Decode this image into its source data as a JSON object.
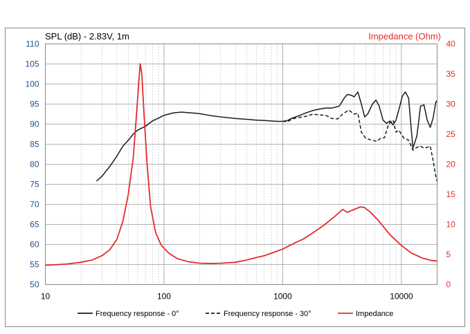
{
  "chart_data": {
    "type": "line",
    "x_scale": "log",
    "xlim": [
      10,
      20000
    ],
    "x_ticks": [
      "10",
      "100",
      "1000",
      "10000"
    ],
    "y_left": {
      "label": "SPL (dB) - 2.83V, 1m",
      "ylim": [
        50,
        110
      ],
      "ticks": [
        "50",
        "55",
        "60",
        "65",
        "70",
        "75",
        "80",
        "85",
        "90",
        "95",
        "100",
        "105",
        "110"
      ]
    },
    "y_right": {
      "label": "Impedance (Ohm)",
      "ylim": [
        0,
        40
      ],
      "ticks": [
        "0",
        "5",
        "10",
        "15",
        "20",
        "25",
        "30",
        "35",
        "40"
      ]
    },
    "grid": true,
    "legend_position": "bottom",
    "colors": {
      "spl": "#1a1a1a",
      "impedance": "#e32b2b",
      "left_axis": "#1f4e8c"
    },
    "series": [
      {
        "name": "Frequency response - 0°",
        "axis": "left",
        "style": "solid",
        "color": "#1a1a1a",
        "points": [
          [
            27,
            75.8
          ],
          [
            30,
            77
          ],
          [
            35,
            79.5
          ],
          [
            40,
            82
          ],
          [
            45,
            84.5
          ],
          [
            50,
            86
          ],
          [
            55,
            87.5
          ],
          [
            60,
            88.5
          ],
          [
            70,
            89.5
          ],
          [
            80,
            90.8
          ],
          [
            90,
            91.5
          ],
          [
            100,
            92.2
          ],
          [
            120,
            92.8
          ],
          [
            140,
            93
          ],
          [
            170,
            92.8
          ],
          [
            200,
            92.6
          ],
          [
            250,
            92.1
          ],
          [
            300,
            91.8
          ],
          [
            400,
            91.4
          ],
          [
            500,
            91.2
          ],
          [
            600,
            91
          ],
          [
            700,
            90.9
          ],
          [
            800,
            90.8
          ],
          [
            900,
            90.7
          ],
          [
            1000,
            90.7
          ],
          [
            1100,
            90.9
          ],
          [
            1200,
            91.5
          ],
          [
            1400,
            92.2
          ],
          [
            1600,
            92.9
          ],
          [
            1800,
            93.4
          ],
          [
            2000,
            93.7
          ],
          [
            2300,
            94
          ],
          [
            2600,
            94
          ],
          [
            3000,
            94.5
          ],
          [
            3300,
            96.5
          ],
          [
            3500,
            97.4
          ],
          [
            3800,
            97.2
          ],
          [
            4000,
            96.8
          ],
          [
            4300,
            98
          ],
          [
            4600,
            95
          ],
          [
            4900,
            91.8
          ],
          [
            5200,
            92.5
          ],
          [
            5700,
            95
          ],
          [
            6100,
            96
          ],
          [
            6500,
            94.5
          ],
          [
            7000,
            91
          ],
          [
            7500,
            90.2
          ],
          [
            8000,
            90.8
          ],
          [
            8500,
            89.8
          ],
          [
            9000,
            91
          ],
          [
            9500,
            93.5
          ],
          [
            10200,
            97
          ],
          [
            10800,
            98
          ],
          [
            11500,
            96.5
          ],
          [
            12500,
            84
          ],
          [
            13500,
            87
          ],
          [
            14500,
            94.5
          ],
          [
            15500,
            94.8
          ],
          [
            16500,
            91
          ],
          [
            17500,
            89.2
          ],
          [
            18500,
            91.5
          ],
          [
            19500,
            95.5
          ],
          [
            20000,
            95.8
          ]
        ]
      },
      {
        "name": "Frequency response - 30°",
        "axis": "left",
        "style": "dashed",
        "color": "#1a1a1a",
        "points": [
          [
            1000,
            90.7
          ],
          [
            1100,
            90.6
          ],
          [
            1200,
            91.3
          ],
          [
            1400,
            91.7
          ],
          [
            1600,
            92
          ],
          [
            1800,
            92.5
          ],
          [
            2000,
            92.3
          ],
          [
            2300,
            92.2
          ],
          [
            2600,
            91.4
          ],
          [
            2900,
            91.3
          ],
          [
            3200,
            92.5
          ],
          [
            3600,
            93.5
          ],
          [
            4000,
            92.5
          ],
          [
            4300,
            92.7
          ],
          [
            4600,
            88
          ],
          [
            5000,
            86.5
          ],
          [
            5600,
            86
          ],
          [
            6200,
            85.7
          ],
          [
            6700,
            86.5
          ],
          [
            7200,
            86.6
          ],
          [
            7800,
            90
          ],
          [
            8500,
            91
          ],
          [
            9000,
            88
          ],
          [
            9500,
            88.5
          ],
          [
            10500,
            86.5
          ],
          [
            11500,
            86
          ],
          [
            12500,
            83.5
          ],
          [
            13500,
            84.2
          ],
          [
            14500,
            84.5
          ],
          [
            15500,
            84
          ],
          [
            16500,
            84.2
          ],
          [
            17500,
            84.5
          ],
          [
            18500,
            81
          ],
          [
            19500,
            77
          ],
          [
            20000,
            75.8
          ]
        ]
      },
      {
        "name": "Impedance",
        "axis": "right",
        "style": "solid",
        "color": "#e32b2b",
        "points": [
          [
            10,
            3.2
          ],
          [
            15,
            3.4
          ],
          [
            20,
            3.7
          ],
          [
            25,
            4.1
          ],
          [
            30,
            4.8
          ],
          [
            35,
            5.8
          ],
          [
            40,
            7.5
          ],
          [
            45,
            10.5
          ],
          [
            50,
            15
          ],
          [
            55,
            21
          ],
          [
            58,
            27
          ],
          [
            61,
            33
          ],
          [
            63,
            36.7
          ],
          [
            65,
            35
          ],
          [
            68,
            28
          ],
          [
            72,
            20
          ],
          [
            77,
            13
          ],
          [
            85,
            8.6
          ],
          [
            95,
            6.5
          ],
          [
            110,
            5.2
          ],
          [
            130,
            4.3
          ],
          [
            160,
            3.8
          ],
          [
            200,
            3.55
          ],
          [
            250,
            3.5
          ],
          [
            300,
            3.55
          ],
          [
            400,
            3.7
          ],
          [
            500,
            4.1
          ],
          [
            600,
            4.5
          ],
          [
            700,
            4.8
          ],
          [
            800,
            5.2
          ],
          [
            1000,
            5.9
          ],
          [
            1200,
            6.7
          ],
          [
            1500,
            7.6
          ],
          [
            1800,
            8.6
          ],
          [
            2200,
            9.8
          ],
          [
            2700,
            11.2
          ],
          [
            3200,
            12.5
          ],
          [
            3500,
            12
          ],
          [
            3900,
            12.4
          ],
          [
            4500,
            12.9
          ],
          [
            4900,
            12.8
          ],
          [
            5500,
            12
          ],
          [
            6500,
            10.5
          ],
          [
            8000,
            8.3
          ],
          [
            10000,
            6.5
          ],
          [
            12000,
            5.3
          ],
          [
            15000,
            4.4
          ],
          [
            18000,
            4
          ],
          [
            20000,
            3.9
          ]
        ]
      }
    ]
  }
}
